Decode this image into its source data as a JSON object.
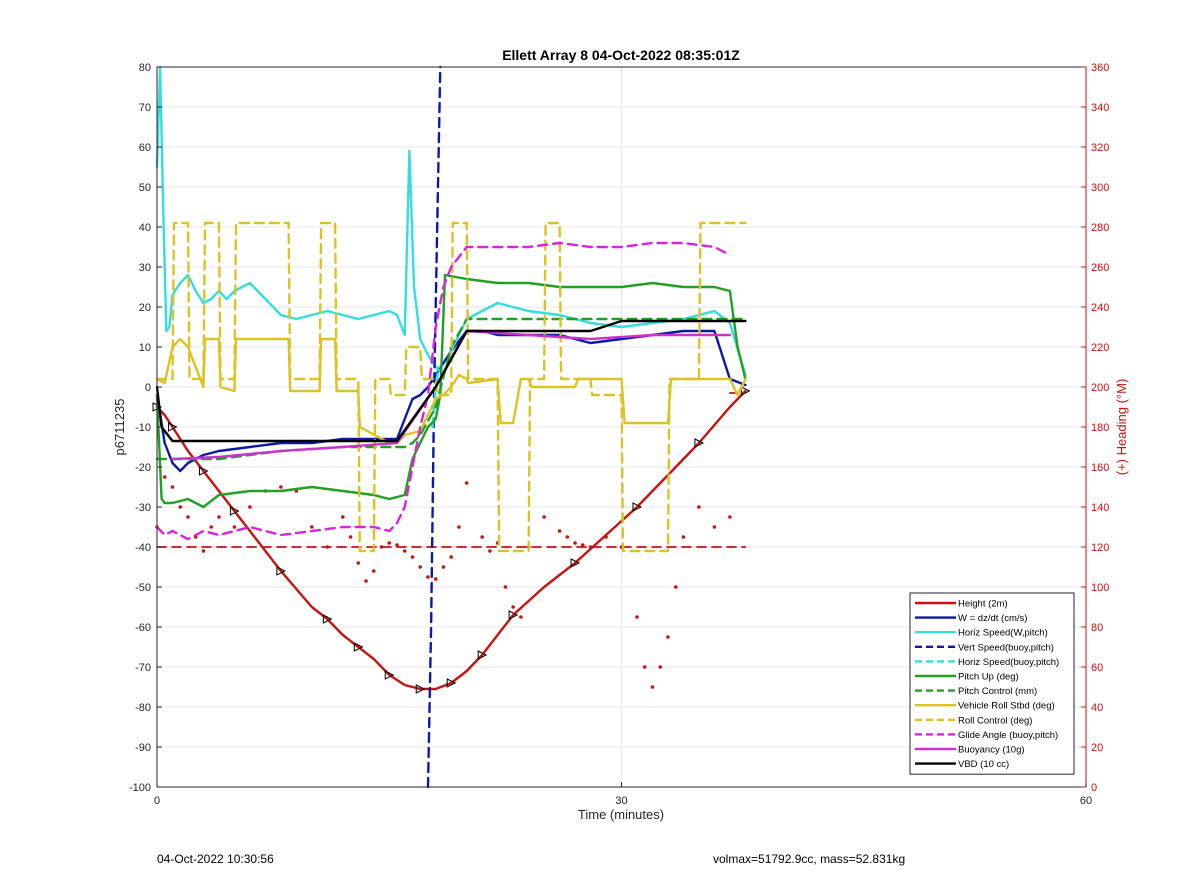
{
  "chart_data": {
    "type": "line",
    "title": "Ellett Array 8 04-Oct-2022 08:35:01Z",
    "xlabel": "Time (minutes)",
    "ylabel": "p6711235",
    "y2label": "(+) Heading (°M)",
    "xlim": [
      0,
      60
    ],
    "ylim": [
      -100,
      80
    ],
    "y2lim": [
      0,
      360
    ],
    "xticks": [
      0,
      30,
      60
    ],
    "yticks": [
      -100,
      -90,
      -80,
      -70,
      -60,
      -50,
      -40,
      -30,
      -20,
      -10,
      0,
      10,
      20,
      30,
      40,
      50,
      60,
      70,
      80
    ],
    "y2ticks": [
      0,
      20,
      40,
      60,
      80,
      100,
      120,
      140,
      160,
      180,
      200,
      220,
      240,
      260,
      280,
      300,
      320,
      340,
      360
    ],
    "grid": true,
    "legend_position": "bottom-right",
    "series": [
      {
        "name": "Height (2m)",
        "color": "#cc1111",
        "style": "solid",
        "marker": "triangle",
        "x": [
          0,
          0.5,
          1,
          2,
          3,
          4,
          5,
          6,
          8,
          10,
          11,
          12,
          13,
          14,
          15,
          16,
          17,
          18,
          19,
          20,
          21,
          22,
          23,
          25,
          27,
          29,
          31,
          33,
          35,
          37,
          38
        ],
        "y": [
          -5,
          -7,
          -10,
          -16,
          -21,
          -26,
          -31,
          -36,
          -46,
          -55,
          -58,
          -62,
          -65,
          -68,
          -72,
          -74.5,
          -75.5,
          -75.5,
          -74,
          -71,
          -67,
          -62,
          -57,
          -50,
          -44,
          -37,
          -30,
          -22,
          -14,
          -5,
          -1
        ]
      },
      {
        "name": "W = dz/dt (cm/s)",
        "color": "#0a1aa8",
        "style": "solid",
        "x": [
          0,
          0.5,
          1,
          1.5,
          2,
          3,
          4,
          6,
          8,
          10,
          12,
          14,
          15.5,
          16,
          16.5,
          17,
          17.5,
          18,
          19,
          20,
          21,
          22,
          24,
          26,
          28,
          30,
          32,
          34,
          36,
          37,
          38
        ],
        "y": [
          -2,
          -14,
          -19,
          -21,
          -19,
          -17,
          -16,
          -15,
          -14,
          -14,
          -13,
          -13,
          -13,
          -8,
          -3,
          -2,
          0,
          3,
          9,
          14,
          14,
          13,
          13,
          13,
          11,
          12,
          13,
          14,
          14,
          2,
          0.5
        ]
      },
      {
        "name": "Horiz Speed(W,pitch)",
        "color": "#33dde0",
        "style": "solid",
        "x": [
          0,
          0.2,
          0.4,
          0.6,
          0.8,
          1,
          1.5,
          2,
          2.5,
          3,
          3.5,
          4,
          4.5,
          5,
          5.5,
          6,
          7,
          8,
          9,
          10,
          11,
          12,
          13,
          14,
          15,
          15.5,
          16,
          16.3,
          16.6,
          17,
          17.5,
          18,
          18.5,
          19,
          20,
          22,
          24,
          26,
          28,
          30,
          32,
          34,
          36,
          37,
          38
        ],
        "y": [
          55,
          80,
          45,
          14,
          15,
          23,
          26,
          28,
          24,
          21,
          22,
          24,
          22,
          24,
          25,
          26,
          22,
          18,
          17,
          18,
          19,
          18,
          17,
          18,
          19,
          18,
          13,
          59,
          25,
          12,
          8,
          5,
          3,
          9,
          17,
          21,
          19,
          18,
          16,
          15,
          16,
          17,
          19,
          16,
          3
        ]
      },
      {
        "name": "Vert Speed(buoy,pitch)",
        "color": "#0a1aa8",
        "style": "dashed",
        "x": [
          17.5,
          17.7,
          17.9,
          18.1,
          18.3
        ],
        "y": [
          -100,
          -60,
          0,
          40,
          80
        ]
      },
      {
        "name": "Horiz Speed(buoy,pitch)",
        "color": "#33dde0",
        "style": "dashed",
        "x": [
          17.8,
          18.0,
          18.2
        ],
        "y": [
          -10,
          0,
          5
        ]
      },
      {
        "name": "Pitch Up (deg)",
        "color": "#22a022",
        "style": "solid",
        "x": [
          0,
          0.3,
          0.5,
          1,
          2,
          3,
          4,
          6,
          8,
          10,
          12,
          14,
          15,
          16,
          16.5,
          17,
          17.5,
          18,
          18.3,
          18.6,
          20,
          22,
          24,
          26,
          28,
          30,
          32,
          34,
          36,
          37,
          37.5,
          38
        ],
        "y": [
          -2,
          -28,
          -29,
          -29,
          -28,
          -30,
          -27,
          -26,
          -26,
          -25,
          -26,
          -27,
          -28,
          -27,
          -18,
          -14,
          -10,
          -8,
          -2,
          28,
          27,
          26,
          26,
          25,
          25,
          25,
          26,
          25,
          25,
          24,
          10,
          2
        ]
      },
      {
        "name": "Pitch Control (mm)",
        "color": "#22a022",
        "style": "dashed",
        "x": [
          0,
          1,
          4,
          8,
          12,
          16,
          16.5,
          17,
          18,
          19,
          20,
          24,
          30,
          36,
          38
        ],
        "y": [
          -18,
          -18,
          -18,
          -16,
          -15,
          -15,
          -14,
          -12,
          -5,
          10,
          17,
          17,
          17,
          17,
          17
        ]
      },
      {
        "name": "Vehicle Roll Stbd (deg)",
        "color": "#ddc222",
        "style": "solid",
        "x": [
          0,
          0.5,
          1,
          1.5,
          2,
          3,
          3.1,
          4,
          4.1,
          5,
          5.1,
          8.5,
          8.6,
          10.5,
          10.6,
          11.5,
          11.6,
          13,
          13.1,
          15,
          15.5,
          16,
          17,
          18,
          18.5,
          19,
          19.5,
          20,
          20.1,
          22,
          22.2,
          23,
          23.5,
          24,
          24.2,
          27,
          27.2,
          30,
          30.2,
          33,
          33.2,
          37,
          37.5,
          38
        ],
        "y": [
          2,
          1,
          10,
          12,
          10,
          0,
          12,
          12,
          0,
          -1,
          12,
          12,
          -1,
          -1,
          12,
          12,
          -1,
          -1,
          -10,
          -14,
          -14,
          -12,
          -11,
          -3,
          -2,
          0,
          3,
          2,
          1,
          2,
          -9,
          -9,
          2,
          2,
          0,
          0,
          2,
          2,
          -9,
          -9,
          2,
          2,
          -2,
          2
        ]
      },
      {
        "name": "Roll Control (deg)",
        "color": "#ddc222",
        "style": "dashed",
        "x": [
          0,
          1,
          1.1,
          2,
          2.1,
          3,
          3.1,
          4,
          4.1,
          5,
          5.1,
          8.5,
          8.6,
          10.5,
          10.6,
          11.5,
          11.6,
          13,
          13.1,
          14,
          14.1,
          15,
          15.1,
          16,
          16.1,
          17,
          17.1,
          18,
          18.1,
          19,
          19.1,
          20,
          20.1,
          22,
          22.1,
          24,
          24.1,
          25,
          25.1,
          26,
          26.1,
          28,
          28.1,
          30,
          30.1,
          33,
          33.1,
          35,
          35.1,
          38
        ],
        "y": [
          2,
          2,
          41,
          41,
          2,
          2,
          41,
          41,
          2,
          2,
          41,
          41,
          2,
          2,
          41,
          41,
          2,
          2,
          -41,
          -41,
          2,
          2,
          -2,
          -2,
          10,
          10,
          2,
          2,
          -2,
          -2,
          41,
          41,
          2,
          2,
          -41,
          -41,
          2,
          2,
          41,
          41,
          2,
          2,
          -2,
          -2,
          -41,
          -41,
          2,
          2,
          41,
          41
        ]
      },
      {
        "name": "Glide Angle (buoy,pitch)",
        "color": "#dd22dd",
        "style": "dashed",
        "x": [
          0,
          0.5,
          1,
          2,
          3,
          4,
          6,
          8,
          10,
          12,
          14,
          15,
          15.5,
          16,
          16.5,
          17,
          17.5,
          18,
          18.5,
          19,
          20,
          22,
          24,
          26,
          28,
          30,
          32,
          34,
          36,
          37
        ],
        "y": [
          -35,
          -37,
          -36,
          -38,
          -36,
          -37,
          -35,
          -37,
          -36,
          -35,
          -35,
          -36,
          -34,
          -30,
          -20,
          -10,
          -2,
          15,
          25,
          30,
          35,
          35,
          35,
          36,
          35,
          35,
          36,
          36,
          35,
          33
        ]
      },
      {
        "name": "Buoyancy (10g)",
        "color": "#cc33cc",
        "style": "solid",
        "x": [
          1,
          4,
          8,
          12,
          15.5,
          18,
          20,
          24,
          28,
          32,
          36,
          37
        ],
        "y": [
          -18,
          -17.5,
          -16,
          -15,
          -14,
          0,
          14,
          13,
          12,
          13,
          13,
          13
        ]
      },
      {
        "name": "VBD (10 cc)",
        "color": "#000000",
        "style": "solid",
        "x": [
          0,
          0.3,
          1,
          15.5,
          18,
          20,
          28,
          30,
          38
        ],
        "y": [
          0,
          -10,
          -13.5,
          -13.5,
          0,
          14,
          14,
          16.5,
          16.5
        ]
      }
    ],
    "heading_series": {
      "name": "(+) Heading (°M)",
      "color": "#cc1111",
      "style": "dotted",
      "axis": "right",
      "x": [
        0,
        0.5,
        1,
        1.5,
        2,
        2.5,
        3,
        3.5,
        4,
        5,
        6,
        7,
        8,
        9,
        10,
        11,
        12,
        12.5,
        13,
        13.5,
        14,
        14.5,
        15,
        15.5,
        16,
        16.5,
        17,
        17.5,
        18,
        18.5,
        19,
        19.5,
        20,
        21,
        21.5,
        22,
        22.5,
        23,
        23.5,
        24,
        25,
        26,
        26.5,
        27,
        27.5,
        28,
        29,
        30,
        31,
        31.5,
        32,
        32.5,
        33,
        33.5,
        34,
        35,
        36,
        37
      ],
      "y": [
        130,
        155,
        150,
        140,
        135,
        125,
        118,
        130,
        135,
        130,
        140,
        148,
        150,
        148,
        130,
        120,
        135,
        125,
        112,
        103,
        108,
        120,
        122,
        121,
        118,
        115,
        110,
        105,
        104,
        110,
        115,
        130,
        152,
        125,
        118,
        122,
        100,
        90,
        85,
        120,
        135,
        128,
        125,
        122,
        121,
        120,
        125,
        120,
        85,
        60,
        50,
        60,
        75,
        100,
        125,
        140,
        130,
        135
      ]
    },
    "reference_lines": [
      {
        "axis": "right",
        "y": 120,
        "x": [
          0,
          38
        ],
        "color": "#cc1111",
        "style": "dashed"
      },
      {
        "axis": "right",
        "y": 197,
        "x": [
          37,
          38
        ],
        "color": "#cc1111",
        "style": "dashed"
      }
    ]
  },
  "footer": {
    "left_text": "04-Oct-2022 10:30:56",
    "right_text": "volmax=51792.9cc, mass=52.831kg"
  }
}
